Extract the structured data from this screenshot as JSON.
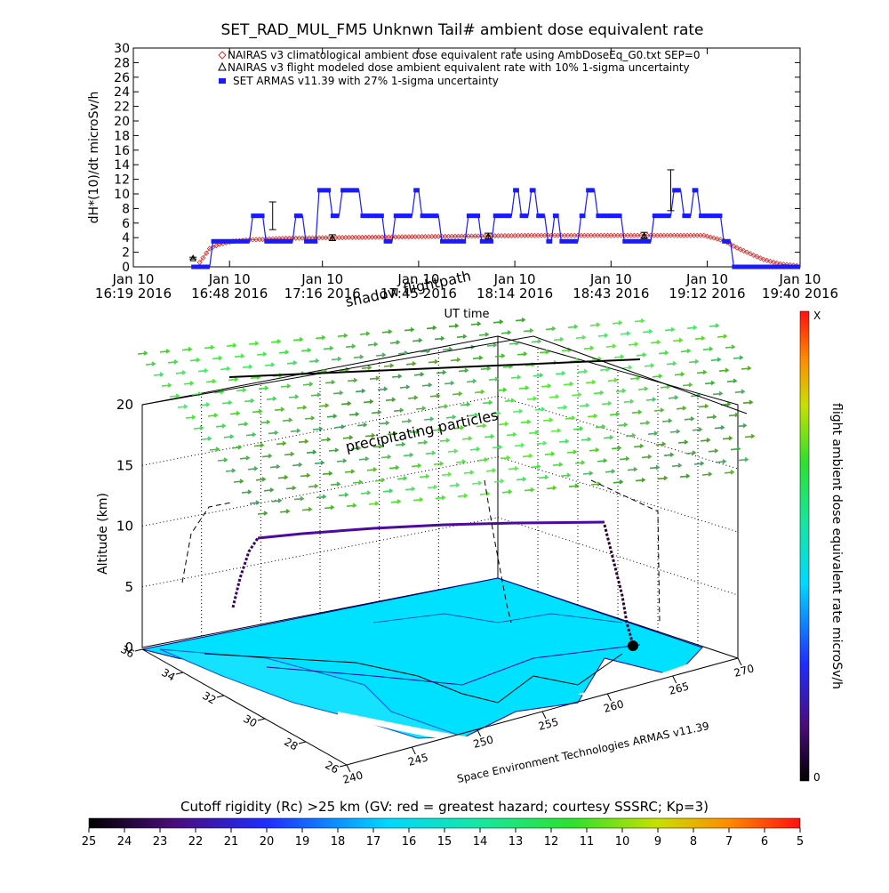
{
  "chart_data": [
    {
      "type": "scatter",
      "title": "SET_RAD_MUL_FM5 Unknwn Tail#  ambient dose equivalent rate",
      "ylabel": "dH*(10)/dt microSv/h",
      "xlabel": "UT time",
      "ylim": [
        0,
        30
      ],
      "yticks": [
        0,
        2,
        4,
        6,
        8,
        10,
        12,
        14,
        16,
        18,
        20,
        22,
        24,
        26,
        28,
        30
      ],
      "xticks": [
        {
          "day": "Jan 10",
          "time": "16:19",
          "year": "2016",
          "minute": 0
        },
        {
          "day": "Jan 10",
          "time": "16:48",
          "year": "2016",
          "minute": 29
        },
        {
          "day": "Jan 10",
          "time": "17:16",
          "year": "2016",
          "minute": 57
        },
        {
          "day": "Jan 10",
          "time": "17:45",
          "year": "2016",
          "minute": 86
        },
        {
          "day": "Jan 10",
          "time": "18:14",
          "year": "2016",
          "minute": 115
        },
        {
          "day": "Jan 10",
          "time": "18:43",
          "year": "2016",
          "minute": 144
        },
        {
          "day": "Jan 10",
          "time": "19:12",
          "year": "2016",
          "minute": 173
        },
        {
          "day": "Jan 10",
          "time": "19:40",
          "year": "2016",
          "minute": 201
        }
      ],
      "xrange_minutes": [
        0,
        201
      ],
      "legend": [
        "NAIRAS v3 climatological ambient dose equivalent rate using AmbDoseEq_G0.txt SEP=0",
        "NAIRAS v3 flight modeled dose ambient equivalent rate with 10% 1-sigma uncertainty",
        "SET ARMAS v11.39 with 27% 1-sigma uncertainty"
      ],
      "legend_placement": "top",
      "series": [
        {
          "name": "NAIRAS v3 climatological ambient dose equivalent rate using AmbDoseEq_G0.txt SEP=0",
          "marker": "diamond",
          "color": "#cc3333",
          "points": [
            [
              20,
              0.6
            ],
            [
              23,
              2.5
            ],
            [
              26,
              3.1
            ],
            [
              30,
              3.5
            ],
            [
              35,
              3.7
            ],
            [
              45,
              3.9
            ],
            [
              60,
              4.0
            ],
            [
              80,
              4.1
            ],
            [
              100,
              4.2
            ],
            [
              120,
              4.3
            ],
            [
              140,
              4.3
            ],
            [
              160,
              4.3
            ],
            [
              172,
              4.3
            ],
            [
              178,
              3.6
            ],
            [
              182,
              2.6
            ],
            [
              186,
              1.8
            ],
            [
              190,
              1.0
            ],
            [
              195,
              0.4
            ],
            [
              199,
              0.2
            ],
            [
              201,
              0.1
            ]
          ]
        },
        {
          "name": "NAIRAS v3 flight modeled dose ambient equivalent rate with 10% 1-sigma uncertainty",
          "marker": "triangle",
          "color": "#000000",
          "points": [
            [
              18,
              1.2
            ],
            [
              60,
              4.0
            ],
            [
              107,
              4.2
            ],
            [
              154,
              4.3
            ]
          ],
          "errors": [
            0.12,
            0.4,
            0.42,
            0.43
          ]
        },
        {
          "name": "SET ARMAS v11.39 with 27% 1-sigma uncertainty",
          "marker": "square",
          "color": "#1a1aff",
          "points": [
            [
              18,
              0
            ],
            [
              23,
              0
            ],
            [
              24,
              3.5
            ],
            [
              35,
              3.5
            ],
            [
              36,
              7
            ],
            [
              39,
              7
            ],
            [
              40,
              3.5
            ],
            [
              48,
              3.5
            ],
            [
              49,
              7
            ],
            [
              51,
              7
            ],
            [
              52,
              3.5
            ],
            [
              55,
              3.5
            ],
            [
              56,
              10.5
            ],
            [
              59,
              10.5
            ],
            [
              60,
              7
            ],
            [
              62,
              7
            ],
            [
              63,
              10.5
            ],
            [
              68,
              10.5
            ],
            [
              69,
              7
            ],
            [
              75,
              7
            ],
            [
              76,
              3.5
            ],
            [
              78,
              3.5
            ],
            [
              79,
              7
            ],
            [
              84,
              7
            ],
            [
              85,
              10.5
            ],
            [
              86,
              10.5
            ],
            [
              87,
              7
            ],
            [
              92,
              7
            ],
            [
              93,
              3.5
            ],
            [
              100,
              3.5
            ],
            [
              101,
              7
            ],
            [
              104,
              7
            ],
            [
              105,
              3.5
            ],
            [
              108,
              3.5
            ],
            [
              109,
              7
            ],
            [
              114,
              7
            ],
            [
              115,
              10.5
            ],
            [
              116,
              10.5
            ],
            [
              117,
              7
            ],
            [
              119,
              7
            ],
            [
              120,
              10.5
            ],
            [
              121,
              10.5
            ],
            [
              122,
              7
            ],
            [
              124,
              7
            ],
            [
              125,
              3.5
            ],
            [
              126,
              3.5
            ],
            [
              127,
              7
            ],
            [
              128,
              7
            ],
            [
              129,
              3.5
            ],
            [
              134,
              3.5
            ],
            [
              135,
              7
            ],
            [
              136,
              7
            ],
            [
              137,
              10.5
            ],
            [
              139,
              10.5
            ],
            [
              140,
              7
            ],
            [
              147,
              7
            ],
            [
              148,
              3.5
            ],
            [
              156,
              3.5
            ],
            [
              157,
              7
            ],
            [
              162,
              7
            ],
            [
              163,
              10.5
            ],
            [
              165,
              10.5
            ],
            [
              166,
              7
            ],
            [
              168,
              7
            ],
            [
              169,
              10.5
            ],
            [
              170,
              10.5
            ],
            [
              171,
              7
            ],
            [
              177,
              7
            ],
            [
              178,
              3.5
            ],
            [
              180,
              3.5
            ],
            [
              181,
              0
            ],
            [
              201,
              0
            ]
          ],
          "errors": [
            [
              42,
              7,
              1.9
            ],
            [
              162,
              10.5,
              2.8
            ]
          ]
        }
      ]
    },
    {
      "type": "surface3d",
      "ylabel": "Altitude (km)",
      "zticks": [
        0,
        5,
        10,
        15,
        20
      ],
      "lat_ticks": [
        26,
        28,
        30,
        32,
        34,
        36
      ],
      "lon_ticks": [
        240,
        245,
        250,
        255,
        260,
        265,
        270
      ],
      "labels": {
        "precipitating": "precipitating particles",
        "shadow": "shadow flightpath",
        "credit": "Space Environment Technologies ARMAS v11.39"
      },
      "right_colorbar": {
        "label": "flight ambient dose equivalent rate microSv/h",
        "top": "X",
        "bottom": "0"
      },
      "bottom_colorbar": {
        "label": "Cutoff rigidity (Rc) >25 km (GV: red = greatest hazard; courtesy SSSRC; Kp=3)",
        "ticks": [
          "25",
          "24",
          "23",
          "22",
          "21",
          "20",
          "19",
          "18",
          "17",
          "16",
          "15",
          "14",
          "13",
          "12",
          "11",
          "10",
          "9",
          "8",
          "7",
          "6",
          "5"
        ]
      }
    }
  ]
}
